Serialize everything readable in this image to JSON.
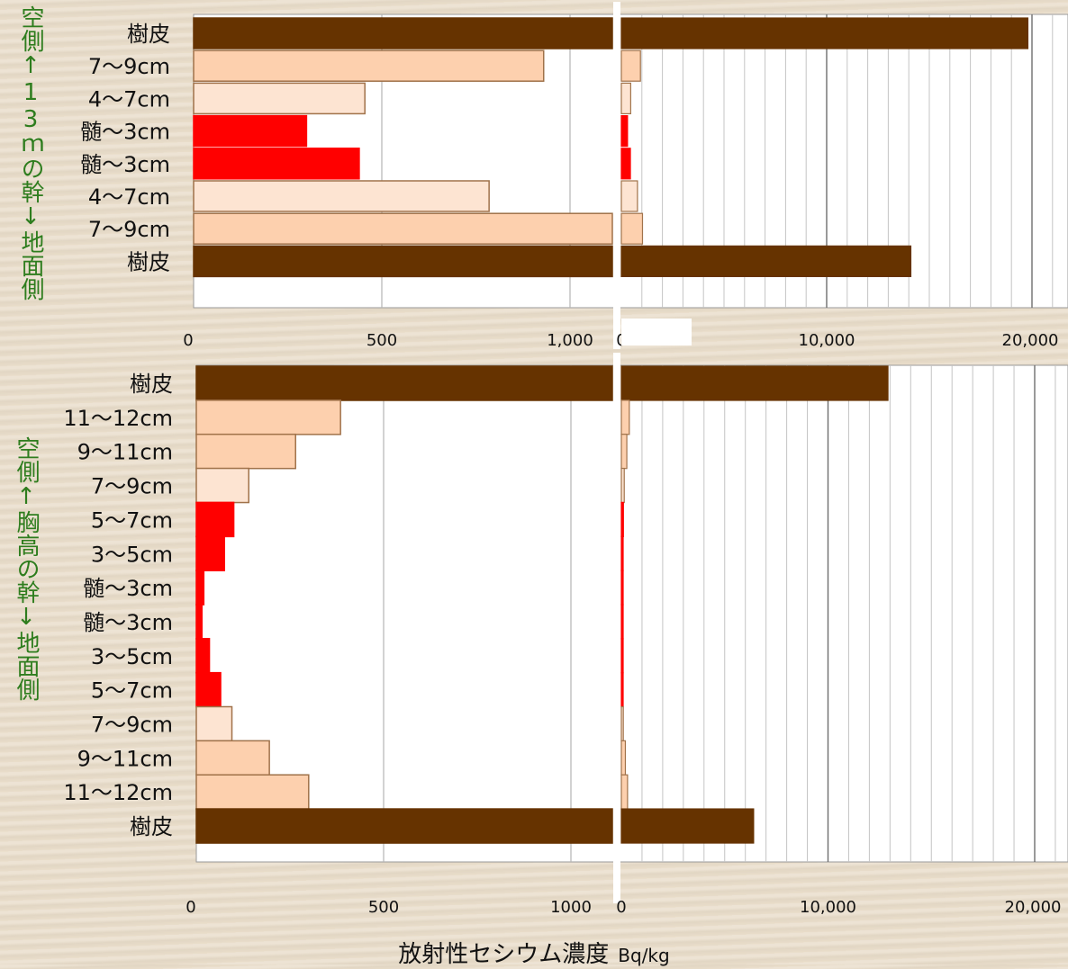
{
  "side_labels": {
    "top": "空側↑13ｍの幹↓地面側",
    "bottom": "空側↑胸高の幹↓地面側"
  },
  "x_title": "放射性セシウム濃度",
  "x_unit": "Bq/kg",
  "colors": {
    "bark": "#663300",
    "outer": "#fdd0ae",
    "middle": "#fde4d2",
    "core": "#ff0000",
    "border": "#a0724a"
  },
  "chart_data": [
    {
      "type": "bar",
      "orientation": "horizontal",
      "title": "",
      "axis_break": true,
      "x_scale_left": [
        0,
        1000
      ],
      "x_scale_right": [
        0,
        20000
      ],
      "left_ticks": [
        "0",
        "500",
        "1,000"
      ],
      "right_ticks": [
        "0",
        "10,000",
        "20,000"
      ],
      "categories": [
        "樹皮",
        "7～9cm",
        "4～7cm",
        "髄～3cm",
        "髄～3cm",
        "4～7cm",
        "7～9cm",
        "樹皮"
      ],
      "values": [
        19800,
        930,
        455,
        300,
        440,
        785,
        1030,
        14100
      ],
      "kind": [
        "bark",
        "outer",
        "middle",
        "core",
        "core",
        "middle",
        "outer",
        "bark"
      ]
    },
    {
      "type": "bar",
      "orientation": "horizontal",
      "title": "",
      "axis_break": true,
      "x_scale_left": [
        0,
        1000
      ],
      "x_scale_right": [
        0,
        20000
      ],
      "left_ticks": [
        "0",
        "500",
        "1000"
      ],
      "right_ticks": [
        "0",
        "10,000",
        "20,000"
      ],
      "categories": [
        "樹皮",
        "11～12cm",
        "9～11cm",
        "7～9cm",
        "5～7cm",
        "3～5cm",
        "髄～3cm",
        "髄～3cm",
        "3～5cm",
        "5～7cm",
        "7～9cm",
        "9～11cm",
        "11～12cm",
        "樹皮"
      ],
      "values": [
        12900,
        385,
        265,
        140,
        100,
        75,
        20,
        15,
        35,
        65,
        95,
        195,
        300,
        6400
      ],
      "kind": [
        "bark",
        "outer",
        "outer",
        "middle",
        "core",
        "core",
        "core",
        "core",
        "core",
        "core",
        "middle",
        "outer",
        "outer",
        "bark"
      ]
    }
  ]
}
